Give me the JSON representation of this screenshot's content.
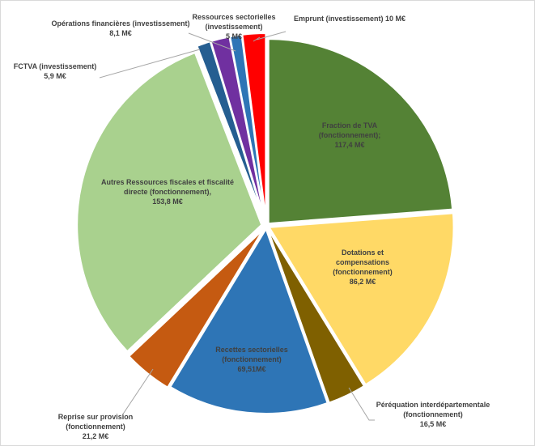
{
  "chart_data": {
    "type": "pie",
    "title": "",
    "start_angle_deg": 0,
    "direction": "clockwise",
    "slices": [
      {
        "label": "Fraction de TVA (fonctionnement);",
        "value_text": "117,4 M€",
        "value": 117.4,
        "color": "#548235"
      },
      {
        "label": "Dotations et compensations (fonctionnement)",
        "value_text": "86,2 M€",
        "value": 86.2,
        "color": "#ffd966"
      },
      {
        "label": "Péréquation interdépartementale (fonctionnement)",
        "value_text": "16,5 M€",
        "value": 16.5,
        "color": "#7f6000"
      },
      {
        "label": "Recettes sectorielles (fonctionnement)",
        "value_text": "69,51M€",
        "value": 69.51,
        "color": "#2e75b6"
      },
      {
        "label": "Reprise sur provision (fonctionnement)",
        "value_text": "21,2 M€",
        "value": 21.2,
        "color": "#c55a11"
      },
      {
        "label": "Autres Ressources fiscales et fiscalité directe (fonctionnement),",
        "value_text": "153,8 M€",
        "value": 153.8,
        "color": "#a9d18e"
      },
      {
        "label": "FCTVA (investissement)",
        "value_text": "5,9 M€",
        "value": 5.9,
        "color": "#255e91"
      },
      {
        "label": "Opérations financières (investissement)",
        "value_text": "8,1 M€",
        "value": 8.1,
        "color": "#7030a0"
      },
      {
        "label": "Ressources sectorielles (investissement)",
        "value_text": "5 M€",
        "value": 5,
        "color": "#2e75b6"
      },
      {
        "label": "Emprunt (investissement) 10 M€",
        "value_text": "",
        "value": 10,
        "color": "#ff0000"
      }
    ]
  }
}
